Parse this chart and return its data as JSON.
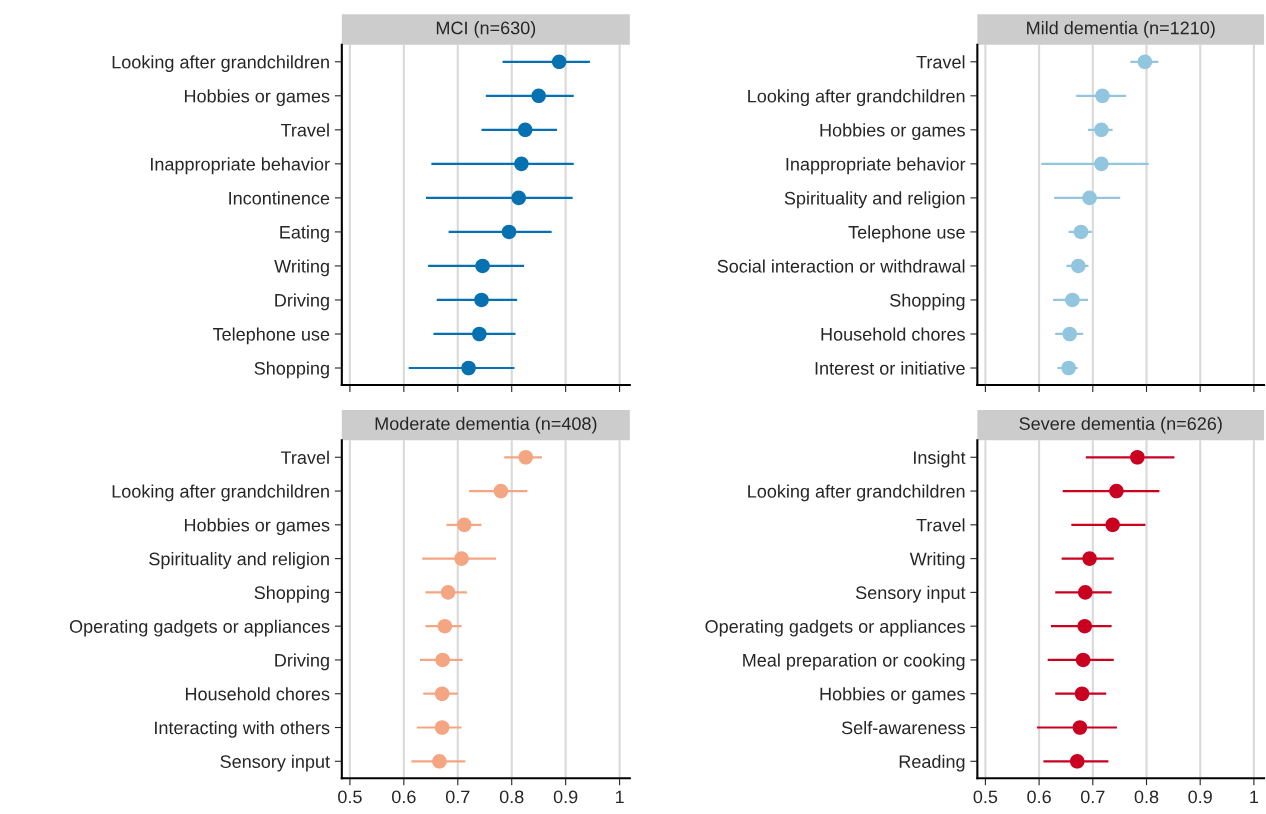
{
  "chart_data": [
    {
      "type": "scatter",
      "orientation": "horizontal",
      "title": "MCI (n=630)",
      "color": "#0571b0",
      "marker": "circle",
      "grid": "x",
      "tick_labels": "y",
      "xlim": [
        0.485,
        1.019
      ],
      "xticks": [
        0.5,
        0.6,
        0.7,
        0.8,
        0.9,
        1
      ],
      "categories": [
        "Looking after grandchildren",
        "Hobbies or games",
        "Travel",
        "Inappropriate behavior",
        "Incontinence",
        "Eating",
        "Writing",
        "Driving",
        "Telephone use",
        "Shopping"
      ],
      "values": [
        0.888,
        0.85,
        0.825,
        0.818,
        0.813,
        0.795,
        0.746,
        0.744,
        0.74,
        0.72
      ],
      "errors": [
        [
          0.783,
          0.945
        ],
        [
          0.752,
          0.915
        ],
        [
          0.744,
          0.884
        ],
        [
          0.651,
          0.915
        ],
        [
          0.641,
          0.913
        ],
        [
          0.683,
          0.874
        ],
        [
          0.645,
          0.823
        ],
        [
          0.661,
          0.81
        ],
        [
          0.655,
          0.807
        ],
        [
          0.609,
          0.805
        ]
      ]
    },
    {
      "type": "scatter",
      "orientation": "horizontal",
      "title": "Mild dementia (n=1210)",
      "color": "#92c5de",
      "marker": "circle",
      "grid": "x",
      "tick_labels": "y",
      "xlim": [
        0.485,
        1.019
      ],
      "xticks": [
        0.5,
        0.6,
        0.7,
        0.8,
        0.9,
        1
      ],
      "categories": [
        "Travel",
        "Looking after grandchildren",
        "Hobbies or games",
        "Inappropriate behavior",
        "Spirituality and religion",
        "Telephone use",
        "Social interaction or withdrawal",
        "Shopping",
        "Household chores",
        "Interest or initiative"
      ],
      "values": [
        0.797,
        0.718,
        0.716,
        0.716,
        0.694,
        0.678,
        0.673,
        0.662,
        0.657,
        0.655
      ],
      "errors": [
        [
          0.77,
          0.822
        ],
        [
          0.669,
          0.762
        ],
        [
          0.691,
          0.737
        ],
        [
          0.604,
          0.804
        ],
        [
          0.628,
          0.751
        ],
        [
          0.655,
          0.698
        ],
        [
          0.651,
          0.692
        ],
        [
          0.626,
          0.691
        ],
        [
          0.63,
          0.682
        ],
        [
          0.634,
          0.672
        ]
      ]
    },
    {
      "type": "scatter",
      "orientation": "horizontal",
      "title": "Moderate dementia (n=408)",
      "color": "#f4a582",
      "marker": "circle",
      "grid": "x",
      "xlim": [
        0.485,
        1.019
      ],
      "xticks": [
        0.5,
        0.6,
        0.7,
        0.8,
        0.9,
        1
      ],
      "categories": [
        "Travel",
        "Looking after grandchildren",
        "Hobbies or games",
        "Spirituality and religion",
        "Shopping",
        "Operating gadgets or appliances",
        "Driving",
        "Household chores",
        "Interacting with others",
        "Sensory input"
      ],
      "values": [
        0.826,
        0.78,
        0.712,
        0.707,
        0.682,
        0.676,
        0.672,
        0.671,
        0.671,
        0.666
      ],
      "errors": [
        [
          0.786,
          0.856
        ],
        [
          0.721,
          0.829
        ],
        [
          0.679,
          0.744
        ],
        [
          0.634,
          0.771
        ],
        [
          0.64,
          0.717
        ],
        [
          0.64,
          0.707
        ],
        [
          0.63,
          0.709
        ],
        [
          0.636,
          0.7
        ],
        [
          0.624,
          0.707
        ],
        [
          0.614,
          0.714
        ]
      ]
    },
    {
      "type": "scatter",
      "orientation": "horizontal",
      "title": "Severe dementia (n=626)",
      "color": "#ca0020",
      "marker": "circle",
      "grid": "x",
      "xlim": [
        0.485,
        1.019
      ],
      "xticks": [
        0.5,
        0.6,
        0.7,
        0.8,
        0.9,
        1
      ],
      "categories": [
        "Insight",
        "Looking after grandchildren",
        "Travel",
        "Writing",
        "Sensory input",
        "Operating gadgets or appliances",
        "Meal preparation or cooking",
        "Hobbies or games",
        "Self-awareness",
        "Reading"
      ],
      "values": [
        0.783,
        0.744,
        0.737,
        0.694,
        0.686,
        0.685,
        0.682,
        0.68,
        0.676,
        0.671
      ],
      "errors": [
        [
          0.687,
          0.852
        ],
        [
          0.644,
          0.824
        ],
        [
          0.66,
          0.798
        ],
        [
          0.642,
          0.739
        ],
        [
          0.63,
          0.735
        ],
        [
          0.622,
          0.735
        ],
        [
          0.616,
          0.739
        ],
        [
          0.63,
          0.725
        ],
        [
          0.596,
          0.745
        ],
        [
          0.608,
          0.729
        ]
      ]
    }
  ]
}
